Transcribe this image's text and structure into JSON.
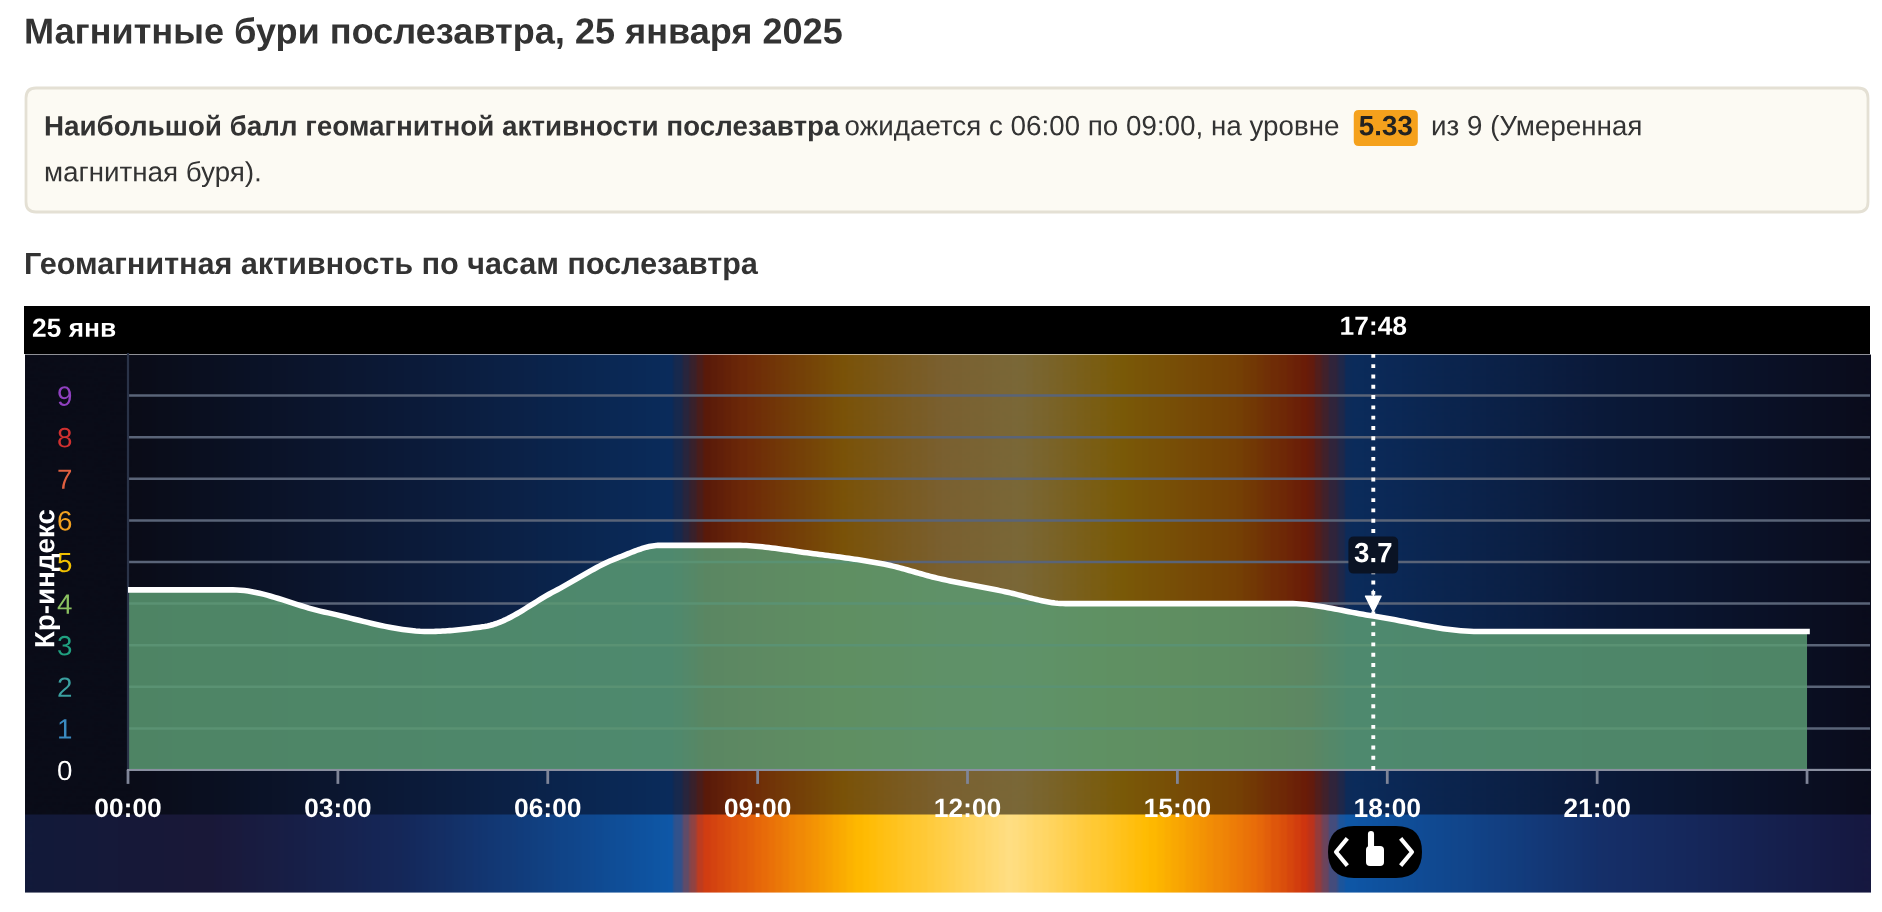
{
  "chart_data": {
    "type": "area",
    "title": "Магнитные бури послезавтра, 25 января 2025",
    "subtitle": "Геомагнитная активность по часам послезавтра",
    "annotations": [
      "Наибольшой балл геомагнитной активности послезавтра",
      "ожидается с 06:00 по 09:00, на уровне",
      "5.33",
      "из 9 (Умеренная",
      "магнитная буря).",
      "25 янв",
      {
        "text": "3.7",
        "x": "2025-01-25T17:48",
        "y": 3.7
      }
    ],
    "ylabel": "Кр-индекс",
    "x": [
      "2025-01-25T00:00",
      "2025-01-25T01:30",
      "2025-01-25T02:48",
      "2025-01-25T04:18",
      "2025-01-25T05:06",
      "2025-01-25T06:06",
      "2025-01-25T07:00",
      "2025-01-25T07:36",
      "2025-01-25T08:42",
      "2025-01-25T09:48",
      "2025-01-25T10:48",
      "2025-01-25T11:36",
      "2025-01-25T12:30",
      "2025-01-25T13:24",
      "2025-01-25T16:36",
      "2025-01-25T17:48",
      "2025-01-25T19:18",
      "2025-01-26T00:00"
    ],
    "series": [
      {
        "color": "#5a9a72",
        "values": [
          4.33,
          4.33,
          3.8,
          3.33,
          3.45,
          4.3,
          5.1,
          5.4,
          5.4,
          5.2,
          4.95,
          4.6,
          4.3,
          4.0,
          4.0,
          3.7,
          3.33,
          3.33
        ]
      }
    ],
    "xlim": [
      "2025-01-25T00:00",
      "2025-01-26T00:54"
    ],
    "xticks": [
      {
        "value": "2025-01-25T00:00",
        "label": "00:00"
      },
      {
        "value": "2025-01-25T03:00",
        "label": "03:00"
      },
      {
        "value": "2025-01-25T06:00",
        "label": "06:00"
      },
      {
        "value": "2025-01-25T09:00",
        "label": "09:00"
      },
      {
        "value": "2025-01-25T12:00",
        "label": "12:00"
      },
      {
        "value": "2025-01-25T15:00",
        "label": "15:00"
      },
      {
        "value": "2025-01-25T18:00",
        "label": "18:00"
      },
      {
        "value": "2025-01-25T21:00",
        "label": "21:00"
      },
      {
        "value": "2025-01-26T00:00",
        "label": null
      }
    ],
    "ylim": [
      0,
      10
    ],
    "yticks": [
      0,
      1,
      2,
      3,
      4,
      5,
      6,
      7,
      8,
      9
    ],
    "grid": "y",
    "line_style": "solid",
    "ref_lines": [
      {
        "axis": "x",
        "value": "2025-01-25T17:48",
        "label": "17:48",
        "color": "#ffffff",
        "line_style": "dotted"
      }
    ]
  }
}
